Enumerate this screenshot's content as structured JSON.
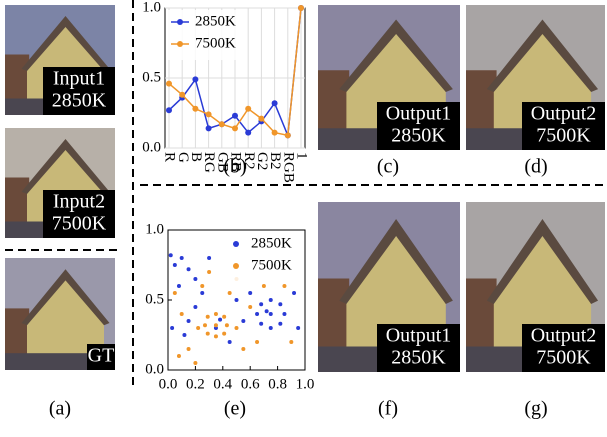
{
  "images": [
    {
      "lines": [
        "Input1",
        "2850K"
      ]
    },
    {
      "lines": [
        "Input2",
        "7500K"
      ]
    },
    {
      "lines": [
        "GT"
      ]
    },
    {
      "lines": [
        "Output1",
        "2850K"
      ]
    },
    {
      "lines": [
        "Output2",
        "7500K"
      ]
    },
    {
      "lines": [
        "Output1",
        "2850K"
      ]
    },
    {
      "lines": [
        "Output2",
        "7500K"
      ]
    }
  ],
  "panel_labels": [
    "(a)",
    "(b)",
    "(c)",
    "(d)",
    "(e)",
    "(f)",
    "(g)"
  ],
  "chart_data": [
    {
      "type": "line",
      "categories": [
        "R",
        "G",
        "B",
        "RG",
        "GB",
        "RB",
        "R2",
        "G2",
        "B2",
        "RGB",
        "1"
      ],
      "series": [
        {
          "name": "2850K",
          "color": "#2a3bd6",
          "values": [
            0.27,
            0.36,
            0.49,
            0.14,
            0.17,
            0.23,
            0.11,
            0.19,
            0.32,
            0.09,
            1.0
          ]
        },
        {
          "name": "7500K",
          "color": "#f0962a",
          "values": [
            0.46,
            0.38,
            0.28,
            0.24,
            0.17,
            0.14,
            0.28,
            0.21,
            0.11,
            0.09,
            1.0
          ]
        }
      ],
      "ylim": [
        0,
        1
      ],
      "yticks": [
        {
          "value": 0,
          "label": "0.0"
        },
        {
          "value": 0.5,
          "label": "0.5"
        },
        {
          "value": 1,
          "label": "1.0"
        }
      ],
      "grid": true,
      "legend": "upper-left"
    },
    {
      "type": "scatter",
      "series": [
        {
          "name": "2850K",
          "color": "#2a3bd6",
          "x": [
            0.85,
            0.82,
            0.75,
            0.68,
            0.65,
            0.68,
            0.75,
            0.82,
            0.75,
            0.72,
            0.02,
            0.05,
            0.1,
            0.15,
            0.2,
            0.08,
            0.25,
            0.3,
            0.03,
            0.15,
            0.35,
            0.38,
            0.5,
            0.45,
            0.6,
            0.92,
            0.95,
            0.55,
            0.2,
            0.12
          ],
          "y": [
            0.4,
            0.47,
            0.5,
            0.47,
            0.4,
            0.33,
            0.3,
            0.33,
            0.4,
            0.42,
            0.82,
            0.75,
            0.8,
            0.72,
            0.65,
            0.6,
            0.55,
            0.8,
            0.3,
            0.35,
            0.3,
            0.36,
            0.5,
            0.2,
            0.55,
            0.55,
            0.3,
            0.35,
            0.45,
            0.25
          ]
        },
        {
          "name": "7500K",
          "color": "#f0962a",
          "x": [
            0.43,
            0.41,
            0.35,
            0.29,
            0.27,
            0.29,
            0.35,
            0.41,
            0.35,
            0.05,
            0.1,
            0.15,
            0.2,
            0.25,
            0.3,
            0.45,
            0.5,
            0.55,
            0.6,
            0.65,
            0.7,
            0.85,
            0.9,
            0.08,
            0.22,
            0.5
          ],
          "y": [
            0.32,
            0.38,
            0.4,
            0.38,
            0.32,
            0.26,
            0.24,
            0.26,
            0.32,
            0.55,
            0.4,
            0.15,
            0.05,
            0.6,
            0.7,
            0.55,
            0.65,
            0.15,
            0.45,
            0.2,
            0.6,
            0.6,
            0.2,
            0.1,
            0.3,
            0.3
          ]
        }
      ],
      "xlim": [
        0,
        1
      ],
      "ylim": [
        0,
        1
      ],
      "xticks": [
        {
          "value": 0,
          "label": "0.0"
        },
        {
          "value": 0.2,
          "label": "0.2"
        },
        {
          "value": 0.4,
          "label": "0.4"
        },
        {
          "value": 0.6,
          "label": "0.6"
        },
        {
          "value": 0.8,
          "label": "0.8"
        },
        {
          "value": 1,
          "label": "1.0"
        }
      ],
      "yticks": [
        {
          "value": 0,
          "label": "0.0"
        },
        {
          "value": 0.5,
          "label": "0.5"
        },
        {
          "value": 1,
          "label": "1.0"
        }
      ],
      "grid": false,
      "legend": "upper-right"
    }
  ]
}
